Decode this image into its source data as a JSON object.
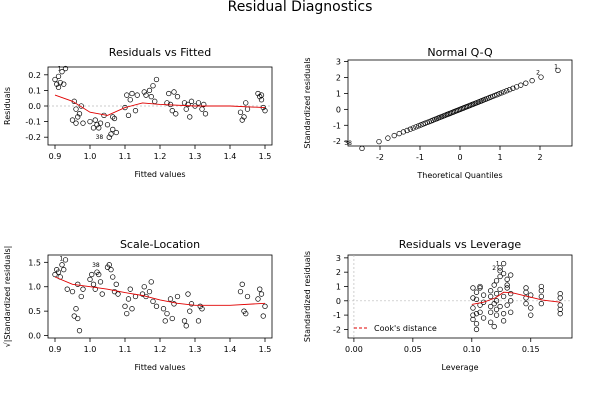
{
  "figure": {
    "title": "Residual Diagnostics"
  },
  "chart_data": [
    {
      "id": "rvf",
      "type": "scatter",
      "title": "Residuals vs Fitted",
      "xlabel": "Fitted values",
      "ylabel": "Residuals",
      "xlim": [
        0.88,
        1.52
      ],
      "ylim": [
        -0.25,
        0.25
      ],
      "xticks": [
        0.9,
        1.0,
        1.1,
        1.2,
        1.3,
        1.4,
        1.5
      ],
      "yticks": [
        -0.2,
        -0.1,
        0.0,
        0.1,
        0.2
      ],
      "xtick_labels": [
        "0.9",
        "1.0",
        "1.1",
        "1.2",
        "1.3",
        "1.4",
        "1.5"
      ],
      "ytick_labels": [
        "-0.2",
        "-0.1",
        "0.0",
        "0.1",
        "0.2"
      ],
      "points": [
        [
          0.9,
          0.17
        ],
        [
          0.905,
          0.14
        ],
        [
          0.91,
          0.19
        ],
        [
          0.915,
          0.15
        ],
        [
          0.92,
          0.22
        ],
        [
          0.93,
          0.24
        ],
        [
          0.91,
          0.12
        ],
        [
          0.925,
          0.14
        ],
        [
          0.955,
          0.03
        ],
        [
          0.96,
          -0.02
        ],
        [
          0.965,
          -0.07
        ],
        [
          0.96,
          -0.11
        ],
        [
          0.97,
          -0.05
        ],
        [
          0.975,
          0.0
        ],
        [
          0.95,
          -0.09
        ],
        [
          0.98,
          -0.11
        ],
        [
          1.0,
          -0.1
        ],
        [
          1.01,
          -0.14
        ],
        [
          1.02,
          -0.12
        ],
        [
          1.015,
          -0.09
        ],
        [
          1.025,
          -0.14
        ],
        [
          1.03,
          -0.11
        ],
        [
          1.04,
          -0.06
        ],
        [
          1.05,
          -0.12
        ],
        [
          1.055,
          -0.2
        ],
        [
          1.06,
          -0.18
        ],
        [
          1.065,
          -0.15
        ],
        [
          1.07,
          -0.08
        ],
        [
          1.075,
          -0.17
        ],
        [
          1.065,
          -0.07
        ],
        [
          1.1,
          -0.01
        ],
        [
          1.105,
          0.07
        ],
        [
          1.11,
          -0.06
        ],
        [
          1.115,
          0.04
        ],
        [
          1.12,
          0.08
        ],
        [
          1.13,
          -0.03
        ],
        [
          1.135,
          0.07
        ],
        [
          1.155,
          0.09
        ],
        [
          1.16,
          0.07
        ],
        [
          1.17,
          0.1
        ],
        [
          1.175,
          0.06
        ],
        [
          1.18,
          0.13
        ],
        [
          1.19,
          0.17
        ],
        [
          1.185,
          0.03
        ],
        [
          1.22,
          0.02
        ],
        [
          1.225,
          0.08
        ],
        [
          1.23,
          0.01
        ],
        [
          1.235,
          -0.03
        ],
        [
          1.24,
          0.09
        ],
        [
          1.245,
          -0.05
        ],
        [
          1.25,
          0.06
        ],
        [
          1.27,
          0.02
        ],
        [
          1.275,
          -0.02
        ],
        [
          1.28,
          0.01
        ],
        [
          1.285,
          -0.07
        ],
        [
          1.29,
          0.03
        ],
        [
          1.3,
          0.0
        ],
        [
          1.31,
          0.02
        ],
        [
          1.32,
          -0.02
        ],
        [
          1.325,
          0.01
        ],
        [
          1.33,
          -0.05
        ],
        [
          1.43,
          -0.04
        ],
        [
          1.435,
          -0.09
        ],
        [
          1.44,
          -0.07
        ],
        [
          1.445,
          0.02
        ],
        [
          1.45,
          -0.02
        ],
        [
          1.48,
          0.08
        ],
        [
          1.485,
          0.06
        ],
        [
          1.49,
          0.04
        ],
        [
          1.495,
          -0.01
        ],
        [
          1.5,
          -0.03
        ],
        [
          1.49,
          0.07
        ]
      ],
      "labels": [
        {
          "text": "1",
          "x": 0.93,
          "y": 0.24
        },
        {
          "text": "38",
          "x": 1.055,
          "y": -0.2
        }
      ],
      "smooth": [
        [
          0.9,
          0.07
        ],
        [
          0.95,
          0.03
        ],
        [
          1.0,
          -0.04
        ],
        [
          1.05,
          -0.06
        ],
        [
          1.1,
          -0.01
        ],
        [
          1.15,
          0.02
        ],
        [
          1.2,
          0.01
        ],
        [
          1.3,
          0.0
        ],
        [
          1.4,
          0.0
        ],
        [
          1.5,
          -0.01
        ]
      ],
      "refline": 0
    },
    {
      "id": "qq",
      "type": "scatter",
      "title": "Normal Q-Q",
      "xlabel": "Theoretical Quantiles",
      "ylabel": "Standardized residuals",
      "xlim": [
        -2.8,
        2.8
      ],
      "ylim": [
        -2.3,
        3.1
      ],
      "xticks": [
        -2,
        -1,
        0,
        1,
        2
      ],
      "yticks": [
        -2,
        -1,
        0,
        1,
        2,
        3
      ],
      "xtick_labels": [
        "-2",
        "-1",
        "0",
        "1",
        "2"
      ],
      "ytick_labels": [
        "-2",
        "-1",
        "0",
        "1",
        "2",
        "3"
      ],
      "qq_n": 70,
      "qq_slope": 1.0,
      "labels": [
        {
          "text": "38",
          "x": -2.55,
          "y": -2.1
        },
        {
          "text": "2",
          "x": 2.1,
          "y": 2.3
        },
        {
          "text": "1",
          "x": 2.55,
          "y": 2.7
        }
      ]
    },
    {
      "id": "sl",
      "type": "scatter",
      "title": "Scale-Location",
      "xlabel": "Fitted values",
      "ylabel": "√|Standardized residuals|",
      "xlim": [
        0.88,
        1.52
      ],
      "ylim": [
        -0.05,
        1.65
      ],
      "xticks": [
        0.9,
        1.0,
        1.1,
        1.2,
        1.3,
        1.4,
        1.5
      ],
      "yticks": [
        0.0,
        0.5,
        1.0,
        1.5
      ],
      "xtick_labels": [
        "0.9",
        "1.0",
        "1.1",
        "1.2",
        "1.3",
        "1.4",
        "1.5"
      ],
      "ytick_labels": [
        "0.0",
        "0.5",
        "1.0",
        "1.5"
      ],
      "points": [
        [
          0.9,
          1.25
        ],
        [
          0.905,
          1.35
        ],
        [
          0.91,
          1.3
        ],
        [
          0.915,
          1.2
        ],
        [
          0.92,
          1.45
        ],
        [
          0.93,
          1.55
        ],
        [
          0.925,
          1.35
        ],
        [
          0.935,
          0.95
        ],
        [
          0.95,
          0.9
        ],
        [
          0.955,
          0.4
        ],
        [
          0.96,
          0.55
        ],
        [
          0.965,
          0.35
        ],
        [
          0.97,
          0.1
        ],
        [
          0.965,
          1.05
        ],
        [
          0.975,
          0.8
        ],
        [
          0.98,
          0.95
        ],
        [
          1.0,
          1.15
        ],
        [
          1.005,
          1.25
        ],
        [
          1.01,
          1.05
        ],
        [
          1.015,
          0.95
        ],
        [
          1.02,
          1.3
        ],
        [
          1.025,
          1.25
        ],
        [
          1.03,
          1.1
        ],
        [
          1.035,
          0.85
        ],
        [
          1.05,
          1.4
        ],
        [
          1.055,
          1.45
        ],
        [
          1.06,
          1.35
        ],
        [
          1.065,
          1.2
        ],
        [
          1.07,
          0.9
        ],
        [
          1.075,
          1.05
        ],
        [
          1.08,
          0.85
        ],
        [
          1.1,
          0.6
        ],
        [
          1.105,
          0.45
        ],
        [
          1.11,
          0.75
        ],
        [
          1.115,
          0.95
        ],
        [
          1.12,
          0.55
        ],
        [
          1.13,
          0.8
        ],
        [
          1.15,
          0.85
        ],
        [
          1.155,
          1.0
        ],
        [
          1.16,
          0.8
        ],
        [
          1.17,
          0.9
        ],
        [
          1.175,
          1.1
        ],
        [
          1.18,
          0.7
        ],
        [
          1.19,
          0.6
        ],
        [
          1.21,
          0.55
        ],
        [
          1.215,
          0.3
        ],
        [
          1.22,
          0.45
        ],
        [
          1.23,
          0.75
        ],
        [
          1.235,
          0.35
        ],
        [
          1.24,
          0.65
        ],
        [
          1.25,
          0.8
        ],
        [
          1.27,
          0.3
        ],
        [
          1.275,
          0.2
        ],
        [
          1.28,
          0.85
        ],
        [
          1.285,
          0.5
        ],
        [
          1.29,
          0.65
        ],
        [
          1.31,
          0.3
        ],
        [
          1.315,
          0.6
        ],
        [
          1.32,
          0.55
        ],
        [
          1.43,
          0.9
        ],
        [
          1.435,
          1.05
        ],
        [
          1.44,
          0.5
        ],
        [
          1.445,
          0.45
        ],
        [
          1.45,
          0.8
        ],
        [
          1.48,
          0.75
        ],
        [
          1.485,
          0.95
        ],
        [
          1.49,
          0.85
        ],
        [
          1.495,
          0.4
        ],
        [
          1.5,
          0.6
        ]
      ],
      "labels": [
        {
          "text": "1",
          "x": 0.935,
          "y": 1.58
        },
        {
          "text": "38",
          "x": 1.045,
          "y": 1.45
        }
      ],
      "smooth": [
        [
          0.9,
          1.2
        ],
        [
          0.95,
          1.05
        ],
        [
          1.0,
          1.0
        ],
        [
          1.05,
          0.95
        ],
        [
          1.1,
          0.88
        ],
        [
          1.15,
          0.82
        ],
        [
          1.2,
          0.73
        ],
        [
          1.25,
          0.66
        ],
        [
          1.3,
          0.62
        ],
        [
          1.4,
          0.62
        ],
        [
          1.5,
          0.66
        ]
      ]
    },
    {
      "id": "rvl",
      "type": "scatter",
      "title": "Residuals vs Leverage",
      "xlabel": "Leverage",
      "ylabel": "Standardized residuals",
      "xlim": [
        -0.005,
        0.185
      ],
      "ylim": [
        -2.6,
        3.2
      ],
      "xticks": [
        0.0,
        0.05,
        0.1,
        0.15
      ],
      "yticks": [
        -2,
        -1,
        0,
        1,
        2,
        3
      ],
      "xtick_labels": [
        "0.00",
        "0.05",
        "0.10",
        "0.15"
      ],
      "ytick_labels": [
        "-2",
        "-1",
        "0",
        "1",
        "2",
        "3"
      ],
      "points": [
        [
          0.101,
          0.2
        ],
        [
          0.101,
          -0.5
        ],
        [
          0.101,
          -1.0
        ],
        [
          0.101,
          0.9
        ],
        [
          0.101,
          -1.3
        ],
        [
          0.104,
          0.6
        ],
        [
          0.104,
          -0.9
        ],
        [
          0.104,
          -1.6
        ],
        [
          0.104,
          0.1
        ],
        [
          0.104,
          -2.0
        ],
        [
          0.107,
          0.9
        ],
        [
          0.107,
          -0.3
        ],
        [
          0.107,
          -0.8
        ],
        [
          0.107,
          1.0
        ],
        [
          0.11,
          -1.2
        ],
        [
          0.11,
          0.4
        ],
        [
          0.11,
          -0.1
        ],
        [
          0.116,
          -0.8
        ],
        [
          0.116,
          0.3
        ],
        [
          0.116,
          -1.5
        ],
        [
          0.116,
          -0.4
        ],
        [
          0.116,
          0.7
        ],
        [
          0.119,
          1.1
        ],
        [
          0.119,
          -1.8
        ],
        [
          0.119,
          -0.2
        ],
        [
          0.121,
          0.5
        ],
        [
          0.121,
          -1.0
        ],
        [
          0.121,
          1.4
        ],
        [
          0.121,
          0.0
        ],
        [
          0.121,
          -0.6
        ],
        [
          0.124,
          2.1
        ],
        [
          0.124,
          2.3
        ],
        [
          0.124,
          1.7
        ],
        [
          0.124,
          0.8
        ],
        [
          0.124,
          -0.4
        ],
        [
          0.127,
          2.6
        ],
        [
          0.127,
          1.9
        ],
        [
          0.127,
          -0.9
        ],
        [
          0.127,
          0.3
        ],
        [
          0.127,
          -1.4
        ],
        [
          0.13,
          1.5
        ],
        [
          0.13,
          0.9
        ],
        [
          0.13,
          -0.3
        ],
        [
          0.13,
          1.1
        ],
        [
          0.133,
          0.5
        ],
        [
          0.133,
          -0.8
        ],
        [
          0.133,
          1.8
        ],
        [
          0.133,
          0.0
        ],
        [
          0.146,
          0.6
        ],
        [
          0.146,
          -0.2
        ],
        [
          0.146,
          0.2
        ],
        [
          0.146,
          0.9
        ],
        [
          0.15,
          -0.5
        ],
        [
          0.15,
          0.4
        ],
        [
          0.15,
          -1.0
        ],
        [
          0.159,
          0.7
        ],
        [
          0.159,
          -0.2
        ],
        [
          0.159,
          0.3
        ],
        [
          0.159,
          1.0
        ],
        [
          0.175,
          0.2
        ],
        [
          0.175,
          -0.3
        ],
        [
          0.175,
          -0.6
        ],
        [
          0.175,
          -0.9
        ],
        [
          0.175,
          0.5
        ]
      ],
      "labels": [
        {
          "text": "1",
          "x": 0.127,
          "y": 2.6
        },
        {
          "text": "2",
          "x": 0.124,
          "y": 2.3
        }
      ],
      "smooth": [
        [
          0.1,
          -0.25
        ],
        [
          0.11,
          -0.1
        ],
        [
          0.12,
          0.2
        ],
        [
          0.127,
          0.6
        ],
        [
          0.135,
          0.55
        ],
        [
          0.15,
          0.25
        ],
        [
          0.16,
          0.05
        ],
        [
          0.175,
          -0.1
        ]
      ],
      "refline": 0,
      "legend": "Cook's distance"
    }
  ]
}
